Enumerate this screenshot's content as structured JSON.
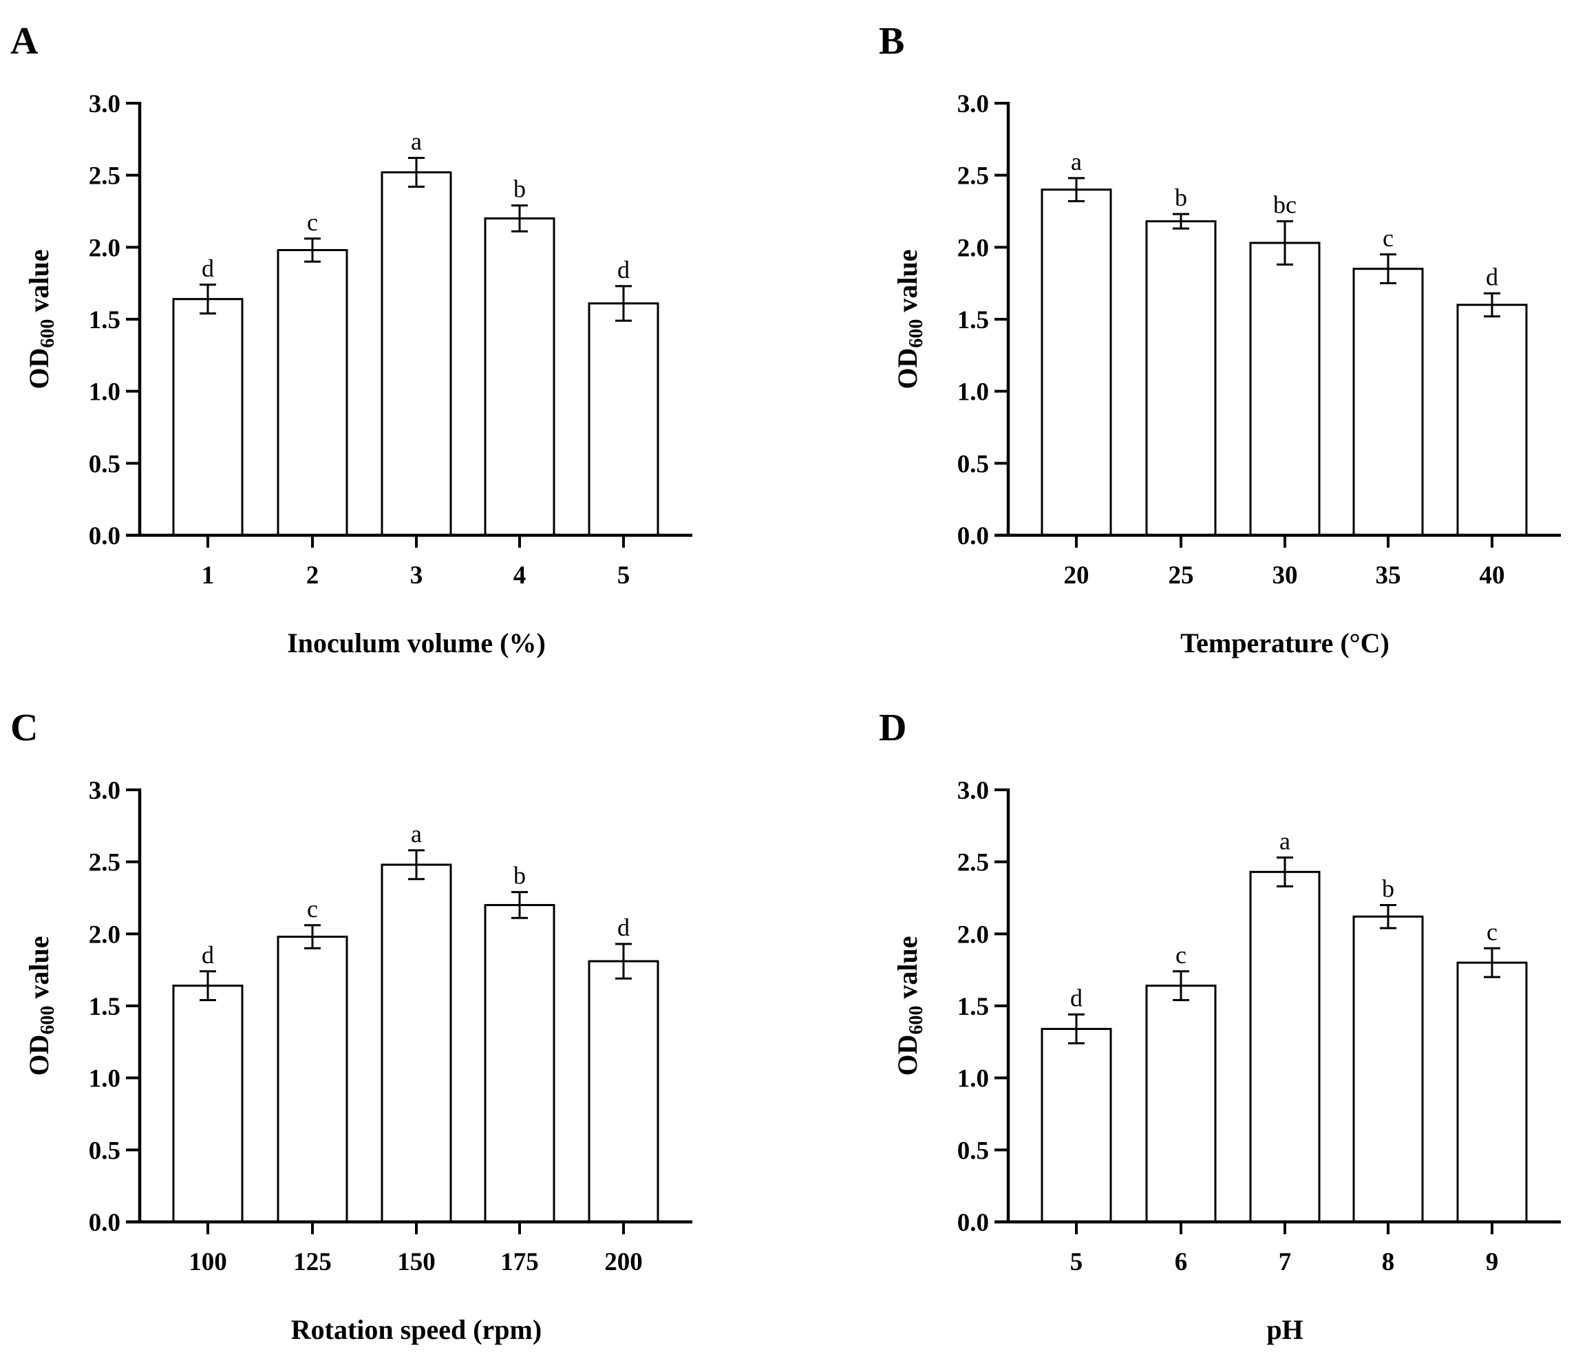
{
  "chart_data": [
    {
      "panel": "A",
      "type": "bar",
      "xlabel": "Inoculum volume (%)",
      "ylabel_main": "OD",
      "ylabel_sub": "600",
      "ylabel_rest": " value",
      "categories": [
        "1",
        "2",
        "3",
        "4",
        "5"
      ],
      "values": [
        1.64,
        1.98,
        2.52,
        2.2,
        1.61
      ],
      "errors": [
        0.1,
        0.08,
        0.1,
        0.09,
        0.12
      ],
      "labels": [
        "d",
        "c",
        "a",
        "b",
        "d"
      ],
      "ylim": [
        0,
        3.0
      ],
      "yticks": [
        "0.0",
        "0.5",
        "1.0",
        "1.5",
        "2.0",
        "2.5",
        "3.0"
      ]
    },
    {
      "panel": "B",
      "type": "bar",
      "xlabel": "Temperature (°C)",
      "ylabel_main": "OD",
      "ylabel_sub": "600",
      "ylabel_rest": " value",
      "categories": [
        "20",
        "25",
        "30",
        "35",
        "40"
      ],
      "values": [
        2.4,
        2.18,
        2.03,
        1.85,
        1.6
      ],
      "errors": [
        0.08,
        0.05,
        0.15,
        0.1,
        0.08
      ],
      "labels": [
        "a",
        "b",
        "bc",
        "c",
        "d"
      ],
      "ylim": [
        0,
        3.0
      ],
      "yticks": [
        "0.0",
        "0.5",
        "1.0",
        "1.5",
        "2.0",
        "2.5",
        "3.0"
      ]
    },
    {
      "panel": "C",
      "type": "bar",
      "xlabel": "Rotation speed (rpm)",
      "ylabel_main": "OD",
      "ylabel_sub": "600",
      "ylabel_rest": " value",
      "categories": [
        "100",
        "125",
        "150",
        "175",
        "200"
      ],
      "values": [
        1.64,
        1.98,
        2.48,
        2.2,
        1.81
      ],
      "errors": [
        0.1,
        0.08,
        0.1,
        0.09,
        0.12
      ],
      "labels": [
        "d",
        "c",
        "a",
        "b",
        "d"
      ],
      "ylim": [
        0,
        3.0
      ],
      "yticks": [
        "0.0",
        "0.5",
        "1.0",
        "1.5",
        "2.0",
        "2.5",
        "3.0"
      ]
    },
    {
      "panel": "D",
      "type": "bar",
      "xlabel": "pH",
      "ylabel_main": "OD",
      "ylabel_sub": "600",
      "ylabel_rest": " value",
      "categories": [
        "5",
        "6",
        "7",
        "8",
        "9"
      ],
      "values": [
        1.34,
        1.64,
        2.43,
        2.12,
        1.8
      ],
      "errors": [
        0.1,
        0.1,
        0.1,
        0.08,
        0.1
      ],
      "labels": [
        "d",
        "c",
        "a",
        "b",
        "c"
      ],
      "ylim": [
        0,
        3.0
      ],
      "yticks": [
        "0.0",
        "0.5",
        "1.0",
        "1.5",
        "2.0",
        "2.5",
        "3.0"
      ]
    }
  ],
  "colors": {
    "bar_fill": "#ffffff",
    "stroke": "#000000"
  }
}
